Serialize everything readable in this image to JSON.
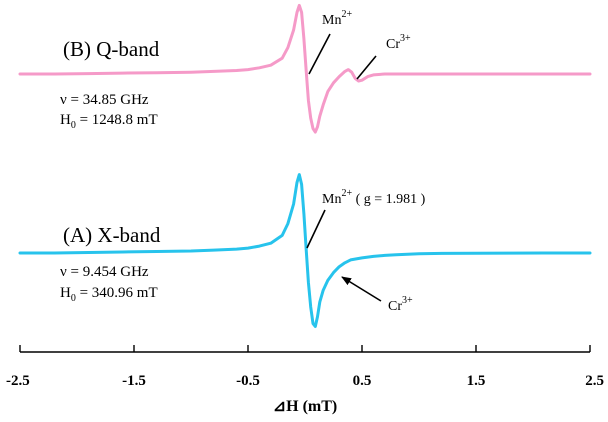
{
  "chart_data": {
    "type": "line",
    "xlabel": "⊿H (mT)",
    "xlim": [
      -2.5,
      2.5
    ],
    "x_ticks": [
      "-2.5",
      "-1.5",
      "-0.5",
      "0.5",
      "1.5",
      "2.5"
    ],
    "grid": false,
    "legend": "none",
    "series": [
      {
        "title": "(B) Q-band",
        "color": "#f59ac8",
        "frequency": "ν = 34.85 GHz",
        "field_label": "H",
        "field_sub": "0",
        "field_value": " = 1248.8 mT",
        "annotations": [
          {
            "ion": "Mn",
            "charge": "2+",
            "rest": ""
          },
          {
            "ion": "Cr",
            "charge": "3+",
            "rest": ""
          }
        ],
        "x": [
          -2.5,
          -2.2,
          -1.9,
          -1.6,
          -1.3,
          -1.0,
          -0.8,
          -0.6,
          -0.5,
          -0.4,
          -0.3,
          -0.2,
          -0.15,
          -0.1,
          -0.07,
          -0.05,
          -0.03,
          -0.01,
          0.01,
          0.03,
          0.05,
          0.07,
          0.09,
          0.11,
          0.13,
          0.16,
          0.2,
          0.25,
          0.3,
          0.35,
          0.38,
          0.41,
          0.44,
          0.47,
          0.5,
          0.55,
          0.6,
          0.7,
          0.8,
          1.0,
          1.3,
          1.6,
          1.9,
          2.2,
          2.5
        ],
        "y": [
          0,
          0,
          0.005,
          0.01,
          0.015,
          0.02,
          0.03,
          0.04,
          0.05,
          0.07,
          0.1,
          0.18,
          0.3,
          0.5,
          0.7,
          0.78,
          0.7,
          0.4,
          0.05,
          -0.3,
          -0.5,
          -0.62,
          -0.66,
          -0.6,
          -0.48,
          -0.35,
          -0.2,
          -0.1,
          -0.03,
          0.03,
          0.05,
          0.02,
          -0.05,
          -0.08,
          -0.07,
          -0.03,
          -0.01,
          0,
          0,
          0,
          0,
          0,
          0,
          0,
          0
        ]
      },
      {
        "title": "(A) X-band",
        "color": "#27c3ec",
        "frequency": "ν = 9.454 GHz",
        "field_label": "H",
        "field_sub": "0",
        "field_value": " = 340.96 mT",
        "annotations": [
          {
            "ion": "Mn",
            "charge": "2+",
            "rest": " ( g = 1.981 )"
          },
          {
            "ion": "Cr",
            "charge": "3+",
            "rest": ""
          }
        ],
        "x": [
          -2.5,
          -2.2,
          -1.9,
          -1.6,
          -1.3,
          -1.0,
          -0.8,
          -0.6,
          -0.5,
          -0.4,
          -0.3,
          -0.2,
          -0.15,
          -0.1,
          -0.07,
          -0.05,
          -0.03,
          -0.01,
          0.01,
          0.03,
          0.05,
          0.07,
          0.09,
          0.11,
          0.13,
          0.16,
          0.2,
          0.25,
          0.3,
          0.35,
          0.4,
          0.5,
          0.6,
          0.7,
          0.8,
          0.9,
          1.0,
          1.2,
          1.5,
          1.8,
          2.1,
          2.5
        ],
        "y": [
          0,
          0,
          0.005,
          0.01,
          0.015,
          0.02,
          0.03,
          0.04,
          0.05,
          0.07,
          0.1,
          0.18,
          0.3,
          0.5,
          0.72,
          0.8,
          0.7,
          0.4,
          0.05,
          -0.3,
          -0.55,
          -0.72,
          -0.75,
          -0.65,
          -0.5,
          -0.38,
          -0.28,
          -0.2,
          -0.14,
          -0.1,
          -0.07,
          -0.05,
          -0.035,
          -0.025,
          -0.018,
          -0.012,
          -0.008,
          -0.004,
          -0.002,
          -0.001,
          0,
          0
        ]
      }
    ]
  }
}
